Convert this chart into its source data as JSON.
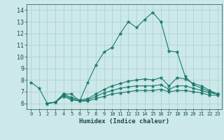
{
  "xlabel": "Humidex (Indice chaleur)",
  "xlim": [
    -0.5,
    23.5
  ],
  "ylim": [
    5.5,
    14.5
  ],
  "yticks": [
    6,
    7,
    8,
    9,
    10,
    11,
    12,
    13,
    14
  ],
  "xticks": [
    0,
    1,
    2,
    3,
    4,
    5,
    6,
    7,
    8,
    9,
    10,
    11,
    12,
    13,
    14,
    15,
    16,
    17,
    18,
    19,
    20,
    21,
    22,
    23
  ],
  "bg_color": "#cce8e8",
  "line_color": "#1a7a6e",
  "grid_color": "#aacfcf",
  "lines": [
    {
      "x": [
        0,
        1,
        2,
        3,
        4,
        5,
        6,
        7,
        8,
        9,
        10,
        11,
        12,
        13,
        14,
        15,
        16,
        17,
        18,
        19,
        20,
        21,
        22,
        23
      ],
      "y": [
        7.8,
        7.3,
        6.0,
        6.1,
        6.8,
        6.8,
        6.2,
        7.8,
        9.3,
        10.4,
        10.8,
        12.0,
        13.0,
        12.5,
        13.2,
        13.8,
        13.0,
        10.5,
        10.4,
        8.3,
        7.6,
        7.3,
        7.0,
        6.8
      ]
    },
    {
      "x": [
        2,
        3,
        4,
        5,
        6,
        7,
        8,
        9,
        10,
        11,
        12,
        13,
        14,
        15,
        16,
        17,
        18,
        19,
        20,
        21,
        22,
        23
      ],
      "y": [
        6.0,
        6.1,
        6.8,
        6.5,
        6.3,
        6.4,
        6.8,
        7.2,
        7.5,
        7.7,
        7.9,
        8.0,
        8.1,
        8.0,
        8.2,
        7.5,
        8.2,
        8.1,
        7.7,
        7.5,
        7.1,
        6.8
      ]
    },
    {
      "x": [
        2,
        3,
        4,
        5,
        6,
        7,
        8,
        9,
        10,
        11,
        12,
        13,
        14,
        15,
        16,
        17,
        18,
        19,
        20,
        21,
        22,
        23
      ],
      "y": [
        6.0,
        6.1,
        6.7,
        6.4,
        6.2,
        6.3,
        6.6,
        6.9,
        7.1,
        7.3,
        7.4,
        7.5,
        7.5,
        7.5,
        7.6,
        7.2,
        7.5,
        7.5,
        7.3,
        7.1,
        6.9,
        6.8
      ]
    },
    {
      "x": [
        2,
        3,
        4,
        5,
        6,
        7,
        8,
        9,
        10,
        11,
        12,
        13,
        14,
        15,
        16,
        17,
        18,
        19,
        20,
        21,
        22,
        23
      ],
      "y": [
        6.0,
        6.1,
        6.6,
        6.3,
        6.2,
        6.2,
        6.4,
        6.6,
        6.8,
        6.9,
        7.0,
        7.1,
        7.1,
        7.1,
        7.2,
        7.0,
        7.1,
        7.1,
        7.0,
        6.9,
        6.7,
        6.7
      ]
    }
  ]
}
